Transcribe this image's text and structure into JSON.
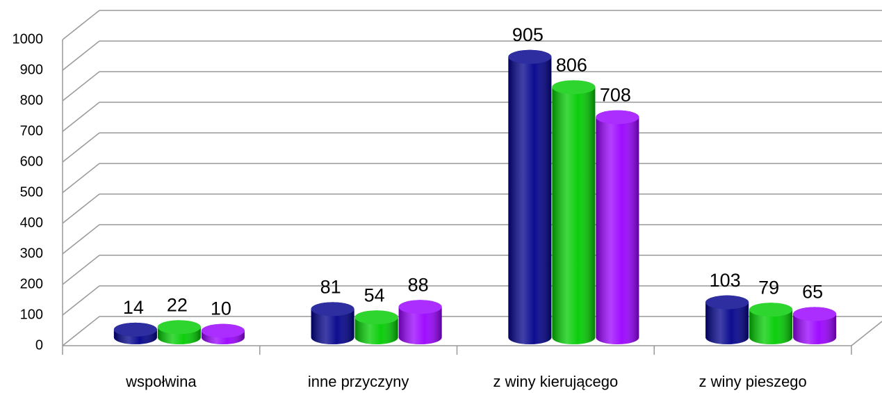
{
  "chart_data": {
    "type": "bar3d",
    "categories": [
      "wspołwina",
      "inne przyczyny",
      "z winy kierującego",
      "z winy pieszego"
    ],
    "series": [
      {
        "color": "#00008b",
        "values": [
          14,
          81,
          905,
          103
        ]
      },
      {
        "color": "#00cc00",
        "values": [
          22,
          54,
          806,
          79
        ]
      },
      {
        "color": "#9900ff",
        "values": [
          10,
          88,
          708,
          65
        ]
      }
    ],
    "ylim": [
      0,
      1000
    ],
    "yticks": [
      0,
      100,
      200,
      300,
      400,
      500,
      600,
      700,
      800,
      900,
      1000
    ],
    "grid": true
  }
}
